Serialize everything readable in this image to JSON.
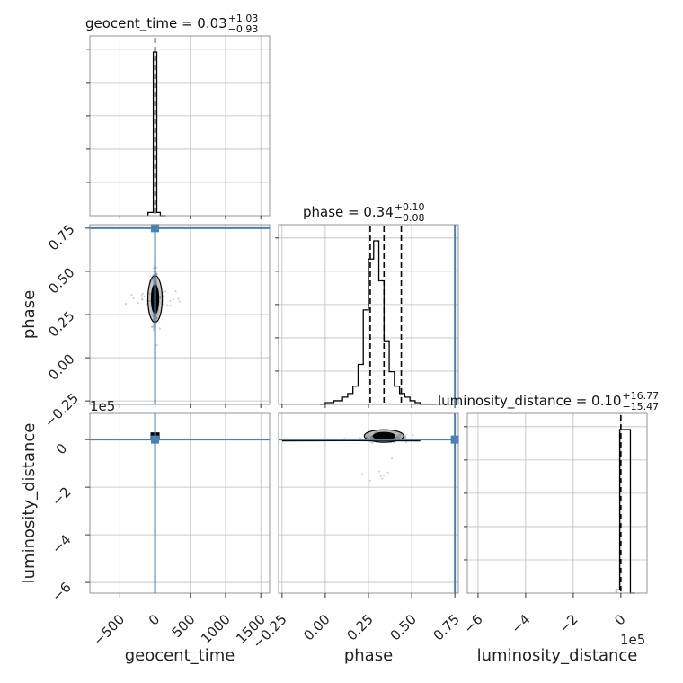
{
  "chart_data": {
    "type": "corner",
    "parameters": [
      "geocent_time",
      "phase",
      "luminosity_distance"
    ],
    "axis_labels": {
      "geocent_time": "geocent_time",
      "phase": "phase",
      "luminosity_distance": "luminosity_distance"
    },
    "ranges": {
      "geocent_time": [
        -925,
        1625
      ],
      "phase": [
        -0.27,
        0.77
      ],
      "luminosity_distance": [
        -645000,
        110000
      ]
    },
    "truths": {
      "geocent_time": 0,
      "phase": 0.75,
      "luminosity_distance": 0
    },
    "ticks": {
      "geocent_time": [
        -500,
        0,
        500,
        1000,
        1500
      ],
      "phase": [
        -0.25,
        0.0,
        0.25,
        0.5,
        0.75
      ],
      "luminosity_distance": [
        -6,
        -4,
        -2,
        0
      ]
    },
    "tick_labels": {
      "geocent_time": [
        "−500",
        "0",
        "500",
        "1000",
        "1500"
      ],
      "phase": [
        "−0.25",
        "0.00",
        "0.25",
        "0.50",
        "0.75"
      ],
      "luminosity_distance": [
        "−6",
        "−4",
        "−2",
        "0"
      ]
    },
    "offset_text": "1e5",
    "titles": [
      {
        "param": "geocent_time",
        "name": "geocent_time",
        "median": "0.03",
        "plus": "+1.03",
        "minus": "−0.93"
      },
      {
        "param": "phase",
        "name": "phase",
        "median": "0.34",
        "plus": "+0.10",
        "minus": "−0.08"
      },
      {
        "param": "luminosity_distance",
        "name": "luminosity_distance",
        "median": "0.10",
        "plus": "+16.77",
        "minus": "−15.47"
      }
    ],
    "histograms": {
      "geocent_time": {
        "edges": [
          -100,
          -25,
          25,
          75,
          150
        ],
        "counts": [
          2,
          100,
          2,
          0
        ]
      },
      "phase": {
        "edges": [
          -0.03,
          0.0,
          0.05,
          0.1,
          0.13,
          0.16,
          0.19,
          0.22,
          0.25,
          0.28,
          0.31,
          0.34,
          0.37,
          0.4,
          0.43,
          0.46,
          0.49,
          0.52,
          0.55,
          0.58,
          0.61,
          0.64
        ],
        "counts": [
          0,
          1,
          2,
          4,
          6,
          10,
          22,
          52,
          80,
          90,
          68,
          35,
          18,
          10,
          6,
          4,
          2,
          1,
          0,
          0,
          0
        ],
        "quantiles": [
          0.26,
          0.34,
          0.44
        ]
      },
      "luminosity_distance": {
        "edges": [
          -20000,
          -5000,
          5000,
          40000,
          60000
        ],
        "counts": [
          2,
          100,
          100,
          0
        ]
      }
    },
    "grid": true
  }
}
